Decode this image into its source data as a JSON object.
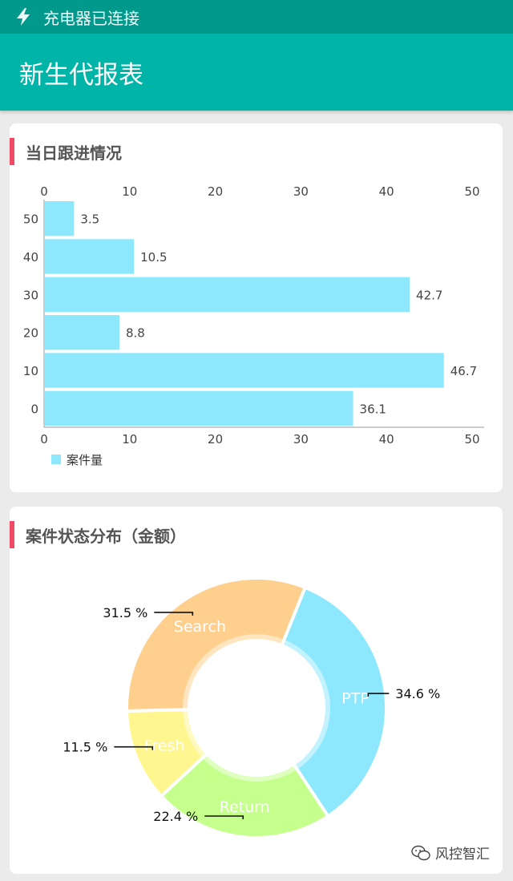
{
  "status_bar": {
    "text": "充电器已连接"
  },
  "app_bar": {
    "title": "新生代报表"
  },
  "cards": [
    {
      "title": "当日跟进情况"
    },
    {
      "title": "案件状态分布（金额）"
    }
  ],
  "watermark": {
    "text": "风控智汇"
  },
  "colors": {
    "status_bar": "#00998c",
    "app_bar": "#00b5a7",
    "accent": "#ef4b67",
    "bar": "#8ee8fd"
  },
  "chart_data": [
    {
      "type": "bar",
      "orientation": "horizontal",
      "categories": [
        "50",
        "40",
        "30",
        "20",
        "10",
        "0"
      ],
      "series": [
        {
          "name": "案件量",
          "values": [
            3.5,
            10.5,
            42.7,
            8.8,
            46.7,
            36.1
          ]
        }
      ],
      "value_labels": [
        "3.5",
        "10.5",
        "42.7",
        "8.8",
        "46.7",
        "36.1"
      ],
      "xlim": [
        0,
        50
      ],
      "x_ticks": [
        "0",
        "10",
        "20",
        "30",
        "40",
        "50"
      ],
      "x_axis_top_and_bottom": true,
      "grid": false,
      "legend": "bottom-left",
      "bar_color": "#8ee8fd"
    },
    {
      "type": "pie",
      "style": "donut",
      "slices": [
        {
          "label": "PTP",
          "value": 34.6,
          "display": "34.6 %",
          "color": "#8ee8fd"
        },
        {
          "label": "Return",
          "value": 22.4,
          "display": "22.4 %",
          "color": "#c5ff8c"
        },
        {
          "label": "Fresh",
          "value": 11.5,
          "display": "11.5 %",
          "color": "#fff68f"
        },
        {
          "label": "Search",
          "value": 31.5,
          "display": "31.5 %",
          "color": "#ffd08d"
        }
      ],
      "start_angle_deg": -68,
      "legend": "none"
    }
  ]
}
